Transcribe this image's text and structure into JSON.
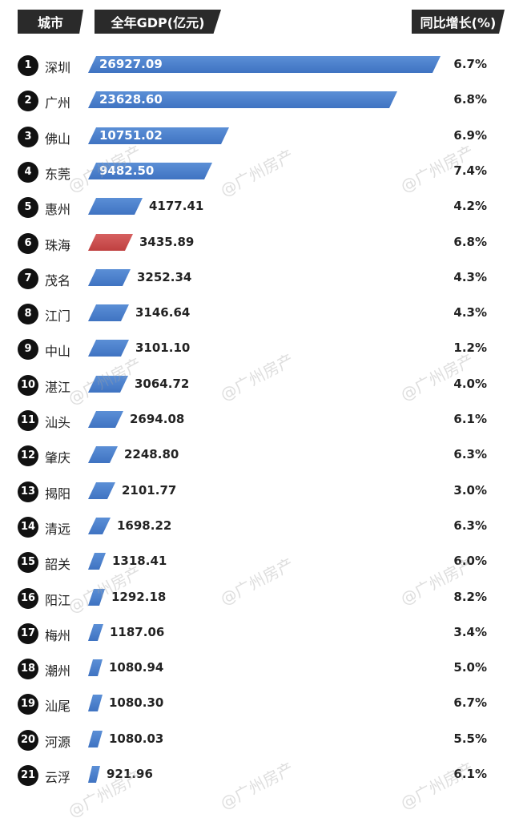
{
  "headers": {
    "city": "城市",
    "gdp": "全年GDP(亿元)",
    "growth": "同比增长(%)"
  },
  "watermark": "@广州房产",
  "colors": {
    "bar": "#4a7fcc",
    "highlight": "#c94a4a",
    "header_bg": "#2a2a2a"
  },
  "chart_data": {
    "type": "bar",
    "orientation": "horizontal",
    "xlabel": "全年GDP(亿元)",
    "growth_label": "同比增长(%)",
    "highlight_category": "珠海",
    "rows": [
      {
        "rank": "1",
        "city": "深圳",
        "gdp": 26927.09,
        "gdp_label": "26927.09",
        "growth": "6.7%"
      },
      {
        "rank": "2",
        "city": "广州",
        "gdp": 23628.6,
        "gdp_label": "23628.60",
        "growth": "6.8%"
      },
      {
        "rank": "3",
        "city": "佛山",
        "gdp": 10751.02,
        "gdp_label": "10751.02",
        "growth": "6.9%"
      },
      {
        "rank": "4",
        "city": "东莞",
        "gdp": 9482.5,
        "gdp_label": "9482.50",
        "growth": "7.4%"
      },
      {
        "rank": "5",
        "city": "惠州",
        "gdp": 4177.41,
        "gdp_label": "4177.41",
        "growth": "4.2%"
      },
      {
        "rank": "6",
        "city": "珠海",
        "gdp": 3435.89,
        "gdp_label": "3435.89",
        "growth": "6.8%"
      },
      {
        "rank": "7",
        "city": "茂名",
        "gdp": 3252.34,
        "gdp_label": "3252.34",
        "growth": "4.3%"
      },
      {
        "rank": "8",
        "city": "江门",
        "gdp": 3146.64,
        "gdp_label": "3146.64",
        "growth": "4.3%"
      },
      {
        "rank": "9",
        "city": "中山",
        "gdp": 3101.1,
        "gdp_label": "3101.10",
        "growth": "1.2%"
      },
      {
        "rank": "10",
        "city": "湛江",
        "gdp": 3064.72,
        "gdp_label": "3064.72",
        "growth": "4.0%"
      },
      {
        "rank": "11",
        "city": "汕头",
        "gdp": 2694.08,
        "gdp_label": "2694.08",
        "growth": "6.1%"
      },
      {
        "rank": "12",
        "city": "肇庆",
        "gdp": 2248.8,
        "gdp_label": "2248.80",
        "growth": "6.3%"
      },
      {
        "rank": "13",
        "city": "揭阳",
        "gdp": 2101.77,
        "gdp_label": "2101.77",
        "growth": "3.0%"
      },
      {
        "rank": "14",
        "city": "清远",
        "gdp": 1698.22,
        "gdp_label": "1698.22",
        "growth": "6.3%"
      },
      {
        "rank": "15",
        "city": "韶关",
        "gdp": 1318.41,
        "gdp_label": "1318.41",
        "growth": "6.0%"
      },
      {
        "rank": "16",
        "city": "阳江",
        "gdp": 1292.18,
        "gdp_label": "1292.18",
        "growth": "8.2%"
      },
      {
        "rank": "17",
        "city": "梅州",
        "gdp": 1187.06,
        "gdp_label": "1187.06",
        "growth": "3.4%"
      },
      {
        "rank": "18",
        "city": "潮州",
        "gdp": 1080.94,
        "gdp_label": "1080.94",
        "growth": "5.0%"
      },
      {
        "rank": "19",
        "city": "汕尾",
        "gdp": 1080.3,
        "gdp_label": "1080.30",
        "growth": "6.7%"
      },
      {
        "rank": "20",
        "city": "河源",
        "gdp": 1080.03,
        "gdp_label": "1080.03",
        "growth": "5.5%"
      },
      {
        "rank": "21",
        "city": "云浮",
        "gdp": 921.96,
        "gdp_label": "921.96",
        "growth": "6.1%"
      }
    ]
  }
}
